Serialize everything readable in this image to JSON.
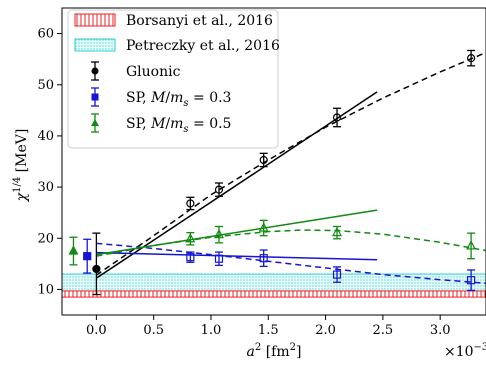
{
  "chart_data": {
    "type": "scatter",
    "title": "",
    "xlabel": "a² [fm²]",
    "ylabel": "χ¹ᐟ⁴ [MeV]",
    "ylabel_parts": {
      "base": "χ",
      "sup": "1/4",
      "unit": "[MeV]"
    },
    "xlabel_parts": {
      "base": "a",
      "sup": "2",
      "unit": "[fm",
      "unit_sup": "2",
      "unit_close": "]"
    },
    "x_offset_label": {
      "base": "×10",
      "sup": "−3"
    },
    "xlim": [
      -0.3,
      3.4
    ],
    "ylim": [
      5,
      65
    ],
    "xticks": [
      0.0,
      0.5,
      1.0,
      1.5,
      2.0,
      2.5,
      3.0
    ],
    "xtick_labels": [
      "0.0",
      "0.5",
      "1.0",
      "1.5",
      "2.0",
      "2.5",
      "3.0"
    ],
    "yticks": [
      10,
      20,
      30,
      40,
      50,
      60
    ],
    "ytick_labels": [
      "10",
      "20",
      "30",
      "40",
      "50",
      "60"
    ],
    "grid": false,
    "legend_position": "top-left",
    "bands": [
      {
        "name": "Borsanyi et al., 2016",
        "y_low": 8.5,
        "y_high": 9.7,
        "color": "#e8202a",
        "pattern": "vertical-hatch"
      },
      {
        "name": "Petreczky et al., 2016",
        "y_low": 9.0,
        "y_high": 13.0,
        "color": "#28d0d0",
        "pattern": "dots"
      }
    ],
    "series": [
      {
        "name": "Gluonic",
        "color": "#000000",
        "marker": "circle",
        "points": [
          {
            "x": 0.82,
            "y": 26.8,
            "err": 1.2
          },
          {
            "x": 1.07,
            "y": 29.5,
            "err": 1.3
          },
          {
            "x": 1.46,
            "y": 35.3,
            "err": 1.3
          },
          {
            "x": 2.1,
            "y": 43.6,
            "err": 1.8
          },
          {
            "x": 3.27,
            "y": 55.2,
            "err": 1.5
          }
        ],
        "continuum": {
          "x": 0.0,
          "y": 14.0,
          "err_low": 5.0,
          "err_high": 7.0
        },
        "fit_line": [
          [
            0.0,
            12.2
          ],
          [
            2.45,
            48.6
          ]
        ],
        "fit_curve": [
          [
            0.0,
            12.8
          ],
          [
            0.5,
            20.5
          ],
          [
            1.0,
            28.5
          ],
          [
            1.5,
            35.3
          ],
          [
            2.0,
            41.7
          ],
          [
            2.5,
            47.4
          ],
          [
            3.0,
            52.5
          ],
          [
            3.4,
            56.3
          ]
        ]
      },
      {
        "name": "SP, M/m_s = 0.3",
        "legend_parts": {
          "prefix": "SP, ",
          "var": "M",
          "slash": "/",
          "var2": "m",
          "sub": "s",
          "suffix": " = 0.3"
        },
        "color": "#1515d8",
        "marker": "square",
        "points": [
          {
            "x": 0.82,
            "y": 16.3,
            "err": 1.0
          },
          {
            "x": 1.07,
            "y": 16.0,
            "err": 1.3
          },
          {
            "x": 1.46,
            "y": 16.1,
            "err": 1.6
          },
          {
            "x": 2.1,
            "y": 12.9,
            "err": 1.5
          },
          {
            "x": 3.27,
            "y": 11.8,
            "err": 2.0
          }
        ],
        "continuum": {
          "x": -0.08,
          "y": 16.5,
          "err_low": 3.3,
          "err_high": 3.3
        },
        "fit_line": [
          [
            0.0,
            17.2
          ],
          [
            2.45,
            15.8
          ]
        ],
        "fit_curve": [
          [
            0.0,
            19.0
          ],
          [
            0.5,
            18.0
          ],
          [
            1.0,
            16.8
          ],
          [
            1.5,
            15.5
          ],
          [
            2.0,
            14.2
          ],
          [
            2.5,
            12.9
          ],
          [
            3.0,
            11.9
          ],
          [
            3.4,
            11.2
          ]
        ]
      },
      {
        "name": "SP, M/m_s = 0.5",
        "legend_parts": {
          "prefix": "SP, ",
          "var": "M",
          "slash": "/",
          "var2": "m",
          "sub": "s",
          "suffix": " = 0.5"
        },
        "color": "#128a12",
        "marker": "triangle",
        "points": [
          {
            "x": 0.82,
            "y": 19.9,
            "err": 1.2
          },
          {
            "x": 1.07,
            "y": 20.7,
            "err": 1.6
          },
          {
            "x": 1.46,
            "y": 22.0,
            "err": 1.5
          },
          {
            "x": 2.1,
            "y": 21.1,
            "err": 1.2
          },
          {
            "x": 3.27,
            "y": 18.5,
            "err": 2.5
          }
        ],
        "continuum": {
          "x": -0.2,
          "y": 17.5,
          "err_low": 2.7,
          "err_high": 2.7
        },
        "fit_line": [
          [
            0.0,
            16.8
          ],
          [
            2.45,
            25.5
          ]
        ],
        "fit_curve": [
          [
            0.0,
            16.5
          ],
          [
            0.5,
            18.6
          ],
          [
            1.0,
            20.2
          ],
          [
            1.5,
            21.3
          ],
          [
            1.8,
            21.6
          ],
          [
            2.1,
            21.5
          ],
          [
            2.5,
            20.8
          ],
          [
            3.0,
            19.2
          ],
          [
            3.4,
            17.6
          ]
        ]
      }
    ]
  }
}
